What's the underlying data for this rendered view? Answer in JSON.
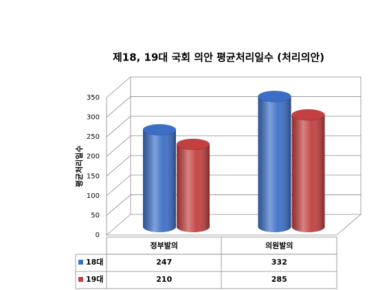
{
  "chart_data": {
    "type": "bar3d",
    "title": "제18, 19대 국회 의안 평균처리일수 (처리의안)",
    "y_label": "평균처리일수",
    "categories": [
      "정부발의",
      "의원발의"
    ],
    "series": [
      {
        "name": "18대",
        "color": "#3b6fc6",
        "values": [
          247,
          332
        ]
      },
      {
        "name": "19대",
        "color": "#c2403f",
        "values": [
          210,
          285
        ]
      }
    ],
    "ylim": [
      0,
      350
    ],
    "yticks": [
      0,
      50,
      100,
      150,
      200,
      250,
      300,
      350
    ],
    "grid": true
  }
}
